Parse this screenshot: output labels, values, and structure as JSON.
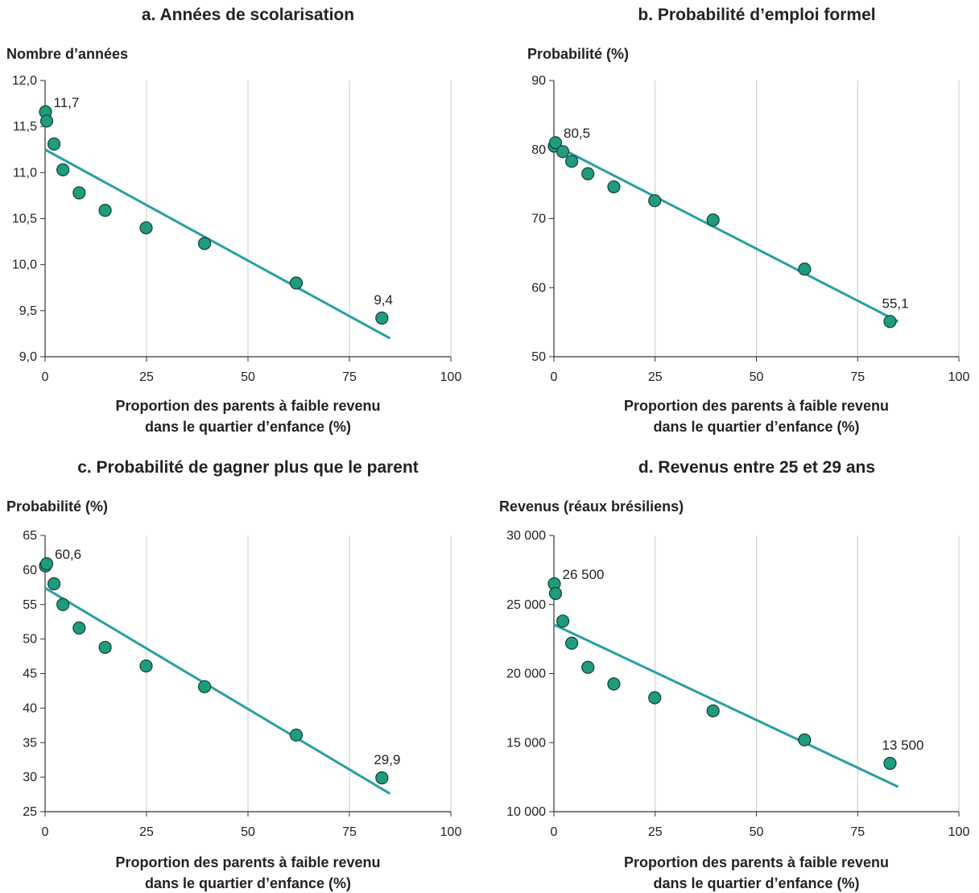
{
  "colors": {
    "marker_fill": "#1F9C7E",
    "marker_stroke": "#123F35",
    "trend_line": "#2A9EA3",
    "grid": "#C8C8C8",
    "axis": "#333333",
    "text": "#222222"
  },
  "chart_data": [
    {
      "id": "a",
      "type": "scatter",
      "title": "a. Années de scolarisation",
      "ylabel": "Nombre d’années",
      "xlabel_lines": [
        "Proportion des parents à faible revenu",
        "dans le quartier d’enfance (%)"
      ],
      "xlim": [
        0,
        100
      ],
      "ylim": [
        9.0,
        12.0
      ],
      "x_ticks": [
        0,
        25,
        50,
        75,
        100
      ],
      "x_tick_labels": [
        "0",
        "25",
        "50",
        "75",
        "100"
      ],
      "y_ticks": [
        9.0,
        9.5,
        10.0,
        10.5,
        11.0,
        11.5,
        12.0
      ],
      "y_tick_labels": [
        "9,0",
        "9,5",
        "10,0",
        "10,5",
        "11,0",
        "11,5",
        "12,0"
      ],
      "grid": "vertical",
      "points": [
        {
          "x": 0.1,
          "y": 11.66
        },
        {
          "x": 0.4,
          "y": 11.56
        },
        {
          "x": 2.2,
          "y": 11.31
        },
        {
          "x": 4.4,
          "y": 11.03
        },
        {
          "x": 8.4,
          "y": 10.78
        },
        {
          "x": 14.8,
          "y": 10.59
        },
        {
          "x": 24.9,
          "y": 10.4
        },
        {
          "x": 39.3,
          "y": 10.23
        },
        {
          "x": 61.9,
          "y": 9.8
        },
        {
          "x": 83.0,
          "y": 9.42
        }
      ],
      "trend": {
        "x": [
          0,
          85
        ],
        "y": [
          11.25,
          9.2
        ]
      },
      "annotations": [
        {
          "text": "11,7",
          "x": 0.1,
          "y": 11.66
        },
        {
          "text": "9,4",
          "x": 83.0,
          "y": 9.42
        }
      ]
    },
    {
      "id": "b",
      "type": "scatter",
      "title": "b. Probabilité d’emploi formel",
      "ylabel": "Probabilité (%)",
      "xlabel_lines": [
        "Proportion des parents à faible revenu",
        "dans le quartier d’enfance (%)"
      ],
      "xlim": [
        0,
        100
      ],
      "ylim": [
        50,
        90
      ],
      "x_ticks": [
        0,
        25,
        50,
        75,
        100
      ],
      "x_tick_labels": [
        "0",
        "25",
        "50",
        "75",
        "100"
      ],
      "y_ticks": [
        50,
        60,
        70,
        80,
        90
      ],
      "y_tick_labels": [
        "50",
        "60",
        "70",
        "80",
        "90"
      ],
      "grid": "vertical",
      "points": [
        {
          "x": 0.1,
          "y": 80.5
        },
        {
          "x": 0.4,
          "y": 81.0
        },
        {
          "x": 2.2,
          "y": 79.7
        },
        {
          "x": 4.4,
          "y": 78.3
        },
        {
          "x": 8.4,
          "y": 76.5
        },
        {
          "x": 14.8,
          "y": 74.6
        },
        {
          "x": 24.9,
          "y": 72.6
        },
        {
          "x": 39.3,
          "y": 69.8
        },
        {
          "x": 61.9,
          "y": 62.7
        },
        {
          "x": 83.0,
          "y": 55.1
        }
      ],
      "trend": {
        "x": [
          0,
          85
        ],
        "y": [
          80.7,
          55.1
        ]
      },
      "annotations": [
        {
          "text": "80,5",
          "x": 0.4,
          "y": 81.0
        },
        {
          "text": "55,1",
          "x": 83.0,
          "y": 55.1
        }
      ]
    },
    {
      "id": "c",
      "type": "scatter",
      "title": "c. Probabilité de gagner plus que le parent",
      "ylabel": "Probabilité (%)",
      "xlabel_lines": [
        "Proportion des parents à faible revenu",
        "dans le quartier d’enfance (%)"
      ],
      "xlim": [
        0,
        100
      ],
      "ylim": [
        25,
        65
      ],
      "x_ticks": [
        0,
        25,
        50,
        75,
        100
      ],
      "x_tick_labels": [
        "0",
        "25",
        "50",
        "75",
        "100"
      ],
      "y_ticks": [
        25,
        30,
        35,
        40,
        45,
        50,
        55,
        60,
        65
      ],
      "y_tick_labels": [
        "25",
        "30",
        "35",
        "40",
        "45",
        "50",
        "55",
        "60",
        "65"
      ],
      "grid": "vertical",
      "points": [
        {
          "x": 0.1,
          "y": 60.6
        },
        {
          "x": 0.4,
          "y": 60.9
        },
        {
          "x": 2.2,
          "y": 58.0
        },
        {
          "x": 4.4,
          "y": 55.0
        },
        {
          "x": 8.4,
          "y": 51.6
        },
        {
          "x": 14.8,
          "y": 48.8
        },
        {
          "x": 24.9,
          "y": 46.1
        },
        {
          "x": 39.3,
          "y": 43.1
        },
        {
          "x": 61.9,
          "y": 36.1
        },
        {
          "x": 83.0,
          "y": 29.9
        }
      ],
      "trend": {
        "x": [
          0,
          85
        ],
        "y": [
          57.4,
          27.6
        ]
      },
      "annotations": [
        {
          "text": "60,6",
          "x": 0.4,
          "y": 60.9
        },
        {
          "text": "29,9",
          "x": 83.0,
          "y": 29.9
        }
      ]
    },
    {
      "id": "d",
      "type": "scatter",
      "title": "d. Revenus entre 25 et 29 ans",
      "ylabel": "Revenus (réaux brésiliens)",
      "xlabel_lines": [
        "Proportion des parents à faible revenu",
        "dans le quartier d’enfance (%)"
      ],
      "xlim": [
        0,
        100
      ],
      "ylim": [
        10000,
        30000
      ],
      "x_ticks": [
        0,
        25,
        50,
        75,
        100
      ],
      "x_tick_labels": [
        "0",
        "25",
        "50",
        "75",
        "100"
      ],
      "y_ticks": [
        10000,
        15000,
        20000,
        25000,
        30000
      ],
      "y_tick_labels": [
        "10 000",
        "15 000",
        "20 000",
        "25 000",
        "30 000"
      ],
      "grid": "vertical",
      "points": [
        {
          "x": 0.1,
          "y": 26500
        },
        {
          "x": 0.4,
          "y": 25800
        },
        {
          "x": 2.2,
          "y": 23800
        },
        {
          "x": 4.4,
          "y": 22200
        },
        {
          "x": 8.4,
          "y": 20450
        },
        {
          "x": 14.8,
          "y": 19250
        },
        {
          "x": 24.9,
          "y": 18250
        },
        {
          "x": 39.3,
          "y": 17300
        },
        {
          "x": 61.9,
          "y": 15200
        },
        {
          "x": 83.0,
          "y": 13500
        }
      ],
      "trend": {
        "x": [
          0,
          85
        ],
        "y": [
          23550,
          11800
        ]
      },
      "annotations": [
        {
          "text": "26 500",
          "x": 0.1,
          "y": 26500
        },
        {
          "text": "13 500",
          "x": 83.0,
          "y": 13500
        }
      ]
    }
  ]
}
